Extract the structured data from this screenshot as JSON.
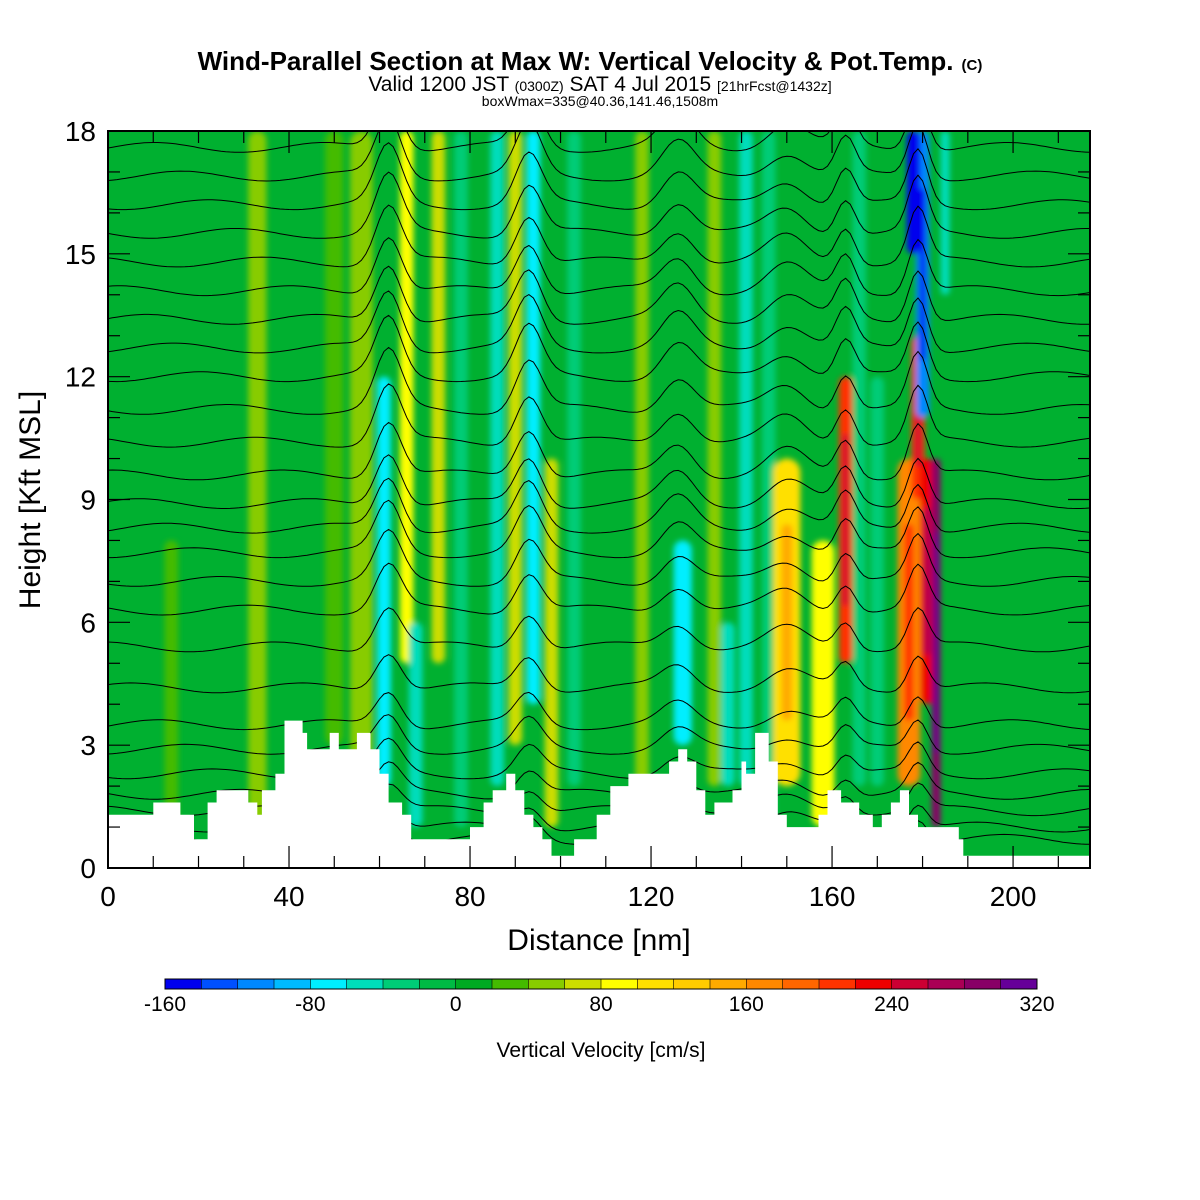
{
  "header": {
    "title_main": "Wind-Parallel Section at Max W: Vertical Velocity & Pot.Temp.",
    "title_mark": "(C)",
    "valid_a": "Valid 1200 JST",
    "valid_b": "(0300Z)",
    "valid_c": "SAT 4 Jul 2015",
    "valid_d": "[21hrFcst@1432z]",
    "boxinfo": "boxWmax=335@40.36,141.46,1508m"
  },
  "colorbar": {
    "label": "Vertical Velocity [cm/s]",
    "tick_labels": [
      "-160",
      "-80",
      "0",
      "80",
      "160",
      "240",
      "320"
    ],
    "levels": [
      -160,
      -140,
      -120,
      -100,
      -80,
      -60,
      -40,
      -20,
      0,
      20,
      40,
      60,
      80,
      100,
      120,
      140,
      160,
      180,
      200,
      220,
      240,
      260,
      280,
      300,
      320
    ],
    "colors": [
      "#0000ee",
      "#0050ff",
      "#0088ff",
      "#00bbff",
      "#00eeff",
      "#00ddbb",
      "#00cc77",
      "#00bb44",
      "#00aa22",
      "#44bb00",
      "#88cc00",
      "#ccdd00",
      "#ffff00",
      "#ffe000",
      "#ffcc00",
      "#ffaa00",
      "#ff8800",
      "#ff6600",
      "#ff3300",
      "#ee0000",
      "#cc0033",
      "#aa0055",
      "#880066",
      "#660099"
    ]
  },
  "colors": {
    "background": "#00b030",
    "terrain": "#ffffff",
    "contour": "#000000"
  },
  "chart_data": {
    "type": "heatmap",
    "title": "Wind-Parallel Section at Max W: Vertical Velocity & Pot.Temp.",
    "subtitle": "Valid 1200 JST (0300Z) SAT 4 Jul 2015 [21hrFcst@1432z]",
    "xlabel": "Distance [nm]",
    "ylabel": "Height [Kft MSL]",
    "xlim": [
      0,
      217
    ],
    "ylim": [
      0,
      18
    ],
    "x_ticks": [
      0,
      40,
      80,
      120,
      160,
      200
    ],
    "y_ticks": [
      0,
      3,
      6,
      9,
      12,
      15,
      18
    ],
    "field": "Vertical Velocity [cm/s]",
    "contour_field": "Potential Temperature",
    "grid": false,
    "legend": "colorbar below plot",
    "terrain_kft": [
      [
        0,
        1.3
      ],
      [
        10,
        1.3
      ],
      [
        10,
        1.6
      ],
      [
        16,
        1.6
      ],
      [
        16,
        1.3
      ],
      [
        19,
        1.3
      ],
      [
        19,
        0.7
      ],
      [
        22,
        0.7
      ],
      [
        22,
        1.6
      ],
      [
        24,
        1.6
      ],
      [
        24,
        1.9
      ],
      [
        29,
        1.9
      ],
      [
        31,
        1.9
      ],
      [
        31,
        1.6
      ],
      [
        33,
        1.6
      ],
      [
        33,
        1.3
      ],
      [
        34,
        1.3
      ],
      [
        34,
        1.9
      ],
      [
        37,
        1.9
      ],
      [
        37,
        2.3
      ],
      [
        39,
        2.3
      ],
      [
        39,
        3.6
      ],
      [
        43,
        3.6
      ],
      [
        43,
        3.3
      ],
      [
        44,
        3.3
      ],
      [
        44,
        2.9
      ],
      [
        49,
        2.9
      ],
      [
        49,
        3.3
      ],
      [
        51,
        3.3
      ],
      [
        51,
        2.9
      ],
      [
        55,
        2.9
      ],
      [
        55,
        3.3
      ],
      [
        58,
        3.3
      ],
      [
        58,
        2.9
      ],
      [
        60,
        2.9
      ],
      [
        60,
        2.3
      ],
      [
        62,
        2.3
      ],
      [
        62,
        1.6
      ],
      [
        65,
        1.6
      ],
      [
        65,
        1.3
      ],
      [
        67,
        1.3
      ],
      [
        67,
        0.7
      ],
      [
        80,
        0.7
      ],
      [
        80,
        1.0
      ],
      [
        83,
        1.0
      ],
      [
        83,
        1.6
      ],
      [
        85,
        1.6
      ],
      [
        85,
        1.9
      ],
      [
        88,
        1.9
      ],
      [
        88,
        2.3
      ],
      [
        90,
        2.3
      ],
      [
        90,
        1.9
      ],
      [
        92,
        1.9
      ],
      [
        92,
        1.3
      ],
      [
        94,
        1.3
      ],
      [
        94,
        1.0
      ],
      [
        96,
        1.0
      ],
      [
        96,
        0.7
      ],
      [
        98,
        0.7
      ],
      [
        98,
        0.3
      ],
      [
        103,
        0.3
      ],
      [
        103,
        0.7
      ],
      [
        108,
        0.7
      ],
      [
        108,
        1.3
      ],
      [
        111,
        1.3
      ],
      [
        111,
        2.0
      ],
      [
        115,
        2.0
      ],
      [
        115,
        2.3
      ],
      [
        124,
        2.3
      ],
      [
        124,
        2.6
      ],
      [
        126,
        2.6
      ],
      [
        126,
        2.9
      ],
      [
        128,
        2.9
      ],
      [
        128,
        2.6
      ],
      [
        130,
        2.6
      ],
      [
        130,
        1.9
      ],
      [
        132,
        1.9
      ],
      [
        132,
        1.3
      ],
      [
        134,
        1.3
      ],
      [
        134,
        1.6
      ],
      [
        138,
        1.6
      ],
      [
        138,
        1.9
      ],
      [
        140,
        1.9
      ],
      [
        140,
        2.6
      ],
      [
        141,
        2.6
      ],
      [
        141,
        2.3
      ],
      [
        143,
        2.3
      ],
      [
        143,
        3.3
      ],
      [
        146,
        3.3
      ],
      [
        146,
        2.6
      ],
      [
        148,
        2.6
      ],
      [
        148,
        1.3
      ],
      [
        150,
        1.3
      ],
      [
        150,
        1.0
      ],
      [
        157,
        1.0
      ],
      [
        157,
        1.3
      ],
      [
        159,
        1.3
      ],
      [
        159,
        1.9
      ],
      [
        162,
        1.9
      ],
      [
        162,
        1.6
      ],
      [
        166,
        1.6
      ],
      [
        166,
        1.3
      ],
      [
        169,
        1.3
      ],
      [
        169,
        1.0
      ],
      [
        171,
        1.0
      ],
      [
        171,
        1.3
      ],
      [
        173,
        1.3
      ],
      [
        173,
        1.6
      ],
      [
        175,
        1.6
      ],
      [
        175,
        1.9
      ],
      [
        177,
        1.9
      ],
      [
        177,
        1.3
      ],
      [
        179,
        1.3
      ],
      [
        179,
        1.0
      ],
      [
        188,
        1.0
      ],
      [
        188,
        0.7
      ],
      [
        189,
        0.7
      ],
      [
        189,
        0.3
      ],
      [
        217,
        0.3
      ]
    ],
    "w_features": [
      {
        "x": 14,
        "w": 3,
        "z0": 1,
        "z1": 8,
        "v": 30
      },
      {
        "x": 33,
        "w": 4,
        "z0": 1,
        "z1": 18,
        "v": 40
      },
      {
        "x": 50,
        "w": 4,
        "z0": 3,
        "z1": 18,
        "v": 30
      },
      {
        "x": 56,
        "w": 5,
        "z0": 2,
        "z1": 18,
        "v": 50
      },
      {
        "x": 61,
        "w": 3,
        "z0": 2,
        "z1": 12,
        "v": -70
      },
      {
        "x": 66,
        "w": 3,
        "z0": 5,
        "z1": 18,
        "v": 80
      },
      {
        "x": 68,
        "w": 3,
        "z0": 1,
        "z1": 6,
        "v": -60
      },
      {
        "x": 73,
        "w": 3,
        "z0": 5,
        "z1": 18,
        "v": 60
      },
      {
        "x": 78,
        "w": 3,
        "z0": 1,
        "z1": 18,
        "v": -40
      },
      {
        "x": 86,
        "w": 3,
        "z0": 2,
        "z1": 18,
        "v": -60
      },
      {
        "x": 90,
        "w": 3,
        "z0": 3,
        "z1": 18,
        "v": 60
      },
      {
        "x": 94,
        "w": 3,
        "z0": 4,
        "z1": 18,
        "v": -80
      },
      {
        "x": 98,
        "w": 3,
        "z0": 1,
        "z1": 10,
        "v": 60
      },
      {
        "x": 103,
        "w": 3,
        "z0": 2,
        "z1": 18,
        "v": -40
      },
      {
        "x": 118,
        "w": 3,
        "z0": 2,
        "z1": 18,
        "v": 40
      },
      {
        "x": 127,
        "w": 4,
        "z0": 3,
        "z1": 8,
        "v": -80
      },
      {
        "x": 134,
        "w": 3,
        "z0": 2,
        "z1": 18,
        "v": 40
      },
      {
        "x": 137,
        "w": 3,
        "z0": 2,
        "z1": 6,
        "v": -60
      },
      {
        "x": 141,
        "w": 3,
        "z0": 2,
        "z1": 18,
        "v": -60
      },
      {
        "x": 146,
        "w": 3,
        "z0": 1,
        "z1": 18,
        "v": -40
      },
      {
        "x": 150,
        "w": 6,
        "z0": 2,
        "z1": 10,
        "v": 110
      },
      {
        "x": 158,
        "w": 5,
        "z0": 1,
        "z1": 8,
        "v": 90
      },
      {
        "x": 163,
        "w": 3,
        "z0": 5,
        "z1": 12,
        "v": 200
      },
      {
        "x": 166,
        "w": 3,
        "z0": 2,
        "z1": 18,
        "v": -40
      },
      {
        "x": 170,
        "w": 3,
        "z0": 2,
        "z1": 12,
        "v": -40
      },
      {
        "x": 177,
        "w": 5,
        "z0": 2,
        "z1": 10,
        "v": 160
      },
      {
        "x": 179,
        "w": 3,
        "z0": 9,
        "z1": 13,
        "v": 200
      },
      {
        "x": 181,
        "w": 3,
        "z0": 4,
        "z1": 10,
        "v": 220
      },
      {
        "x": 183,
        "w": 2,
        "z0": 1,
        "z1": 10,
        "v": 280
      },
      {
        "x": 180,
        "w": 3,
        "z0": 11,
        "z1": 18,
        "v": -120
      },
      {
        "x": 178,
        "w": 3,
        "z0": 15,
        "z1": 18,
        "v": -160
      },
      {
        "x": 185,
        "w": 2,
        "z0": 14,
        "z1": 18,
        "v": -60
      }
    ],
    "theta_contour_base_kft": [
      0.7,
      1.0,
      1.4,
      1.8,
      2.3,
      2.9,
      3.5,
      4.4,
      5.4,
      6.3,
      7.0,
      7.7,
      8.3,
      8.9,
      9.6,
      10.4,
      11.2,
      12.0,
      12.7,
      13.4,
      14.1,
      14.8,
      15.5,
      16.2,
      16.9,
      17.6
    ],
    "theta_contour_ridges": [
      {
        "x": 62,
        "amp": 1.4,
        "w": 4
      },
      {
        "x": 93,
        "amp": 1.2,
        "w": 4
      },
      {
        "x": 126,
        "amp": 0.8,
        "w": 5
      },
      {
        "x": 150,
        "amp": 0.6,
        "w": 6
      },
      {
        "x": 163,
        "amp": 0.9,
        "w": 3
      },
      {
        "x": 179,
        "amp": 1.3,
        "w": 3
      }
    ]
  }
}
